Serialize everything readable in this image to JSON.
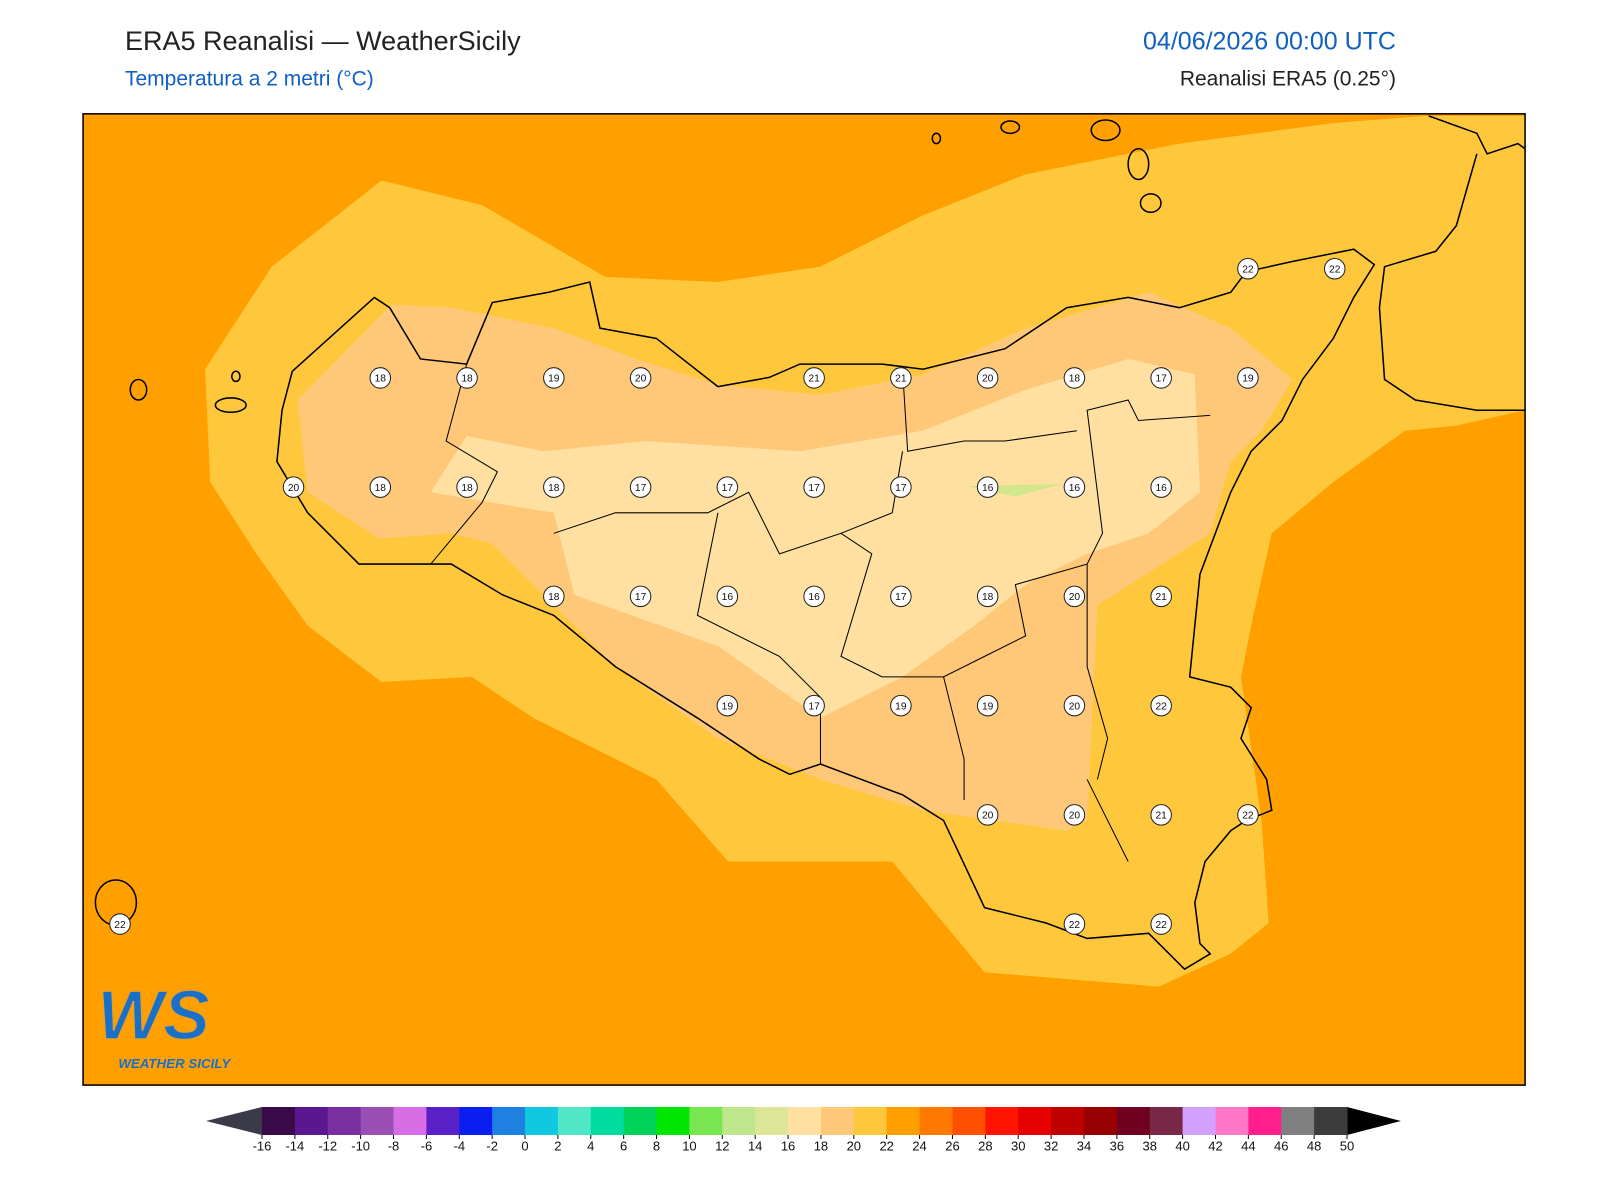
{
  "header": {
    "title": "ERA5 Reanalisi — WeatherSicily",
    "subtitle": "Temperatura a 2 metri (°C)",
    "datetime": "04/06/2026 00:00 UTC",
    "source": "Reanalisi ERA5 (0.25°)"
  },
  "map": {
    "labels": [
      [
        null,
        null,
        null,
        null,
        null,
        null,
        null,
        null,
        null,
        null,
        null,
        null,
        null,
        22,
        22
      ],
      [
        null,
        null,
        null,
        18,
        18,
        19,
        20,
        null,
        21,
        21,
        20,
        18,
        17,
        19,
        null
      ],
      [
        null,
        null,
        20,
        18,
        18,
        18,
        17,
        17,
        17,
        17,
        16,
        16,
        16,
        null,
        null
      ],
      [
        null,
        null,
        null,
        null,
        null,
        18,
        17,
        16,
        16,
        17,
        18,
        20,
        21,
        null,
        null
      ],
      [
        null,
        null,
        null,
        null,
        null,
        null,
        null,
        19,
        17,
        19,
        19,
        20,
        22,
        null,
        null
      ],
      [
        null,
        null,
        null,
        null,
        null,
        null,
        null,
        null,
        null,
        null,
        20,
        20,
        21,
        22,
        null
      ],
      [
        22,
        null,
        null,
        null,
        null,
        null,
        null,
        null,
        null,
        null,
        null,
        22,
        22,
        null,
        null
      ]
    ]
  },
  "logo": {
    "mark": "WS",
    "text": "WEATHER SICILY"
  },
  "colorbar": {
    "ticks": [
      -16,
      -14,
      -12,
      -10,
      -8,
      -6,
      -4,
      -2,
      0,
      2,
      4,
      6,
      8,
      10,
      12,
      14,
      16,
      18,
      20,
      22,
      24,
      26,
      28,
      30,
      32,
      34,
      36,
      38,
      40,
      42,
      44,
      46,
      48,
      50
    ],
    "colors": [
      "#3b0a4a",
      "#5b1790",
      "#7a2fa0",
      "#9b4fb5",
      "#d86ee6",
      "#5a20c8",
      "#0a1ef0",
      "#1e80e0",
      "#10c8e0",
      "#50e6c8",
      "#00dca0",
      "#00d25a",
      "#00e600",
      "#78e650",
      "#bee68c",
      "#dce696",
      "#ffe0a0",
      "#ffc878",
      "#ffc83c",
      "#ffa000",
      "#ff7800",
      "#ff5000",
      "#ff1400",
      "#e60000",
      "#be0000",
      "#960000",
      "#700020",
      "#782846",
      "#d2a0ff",
      "#ff78c8",
      "#ff1e8c",
      "#808080",
      "#3c3c3c"
    ],
    "under": "#3a3a48",
    "over": "#000000"
  }
}
